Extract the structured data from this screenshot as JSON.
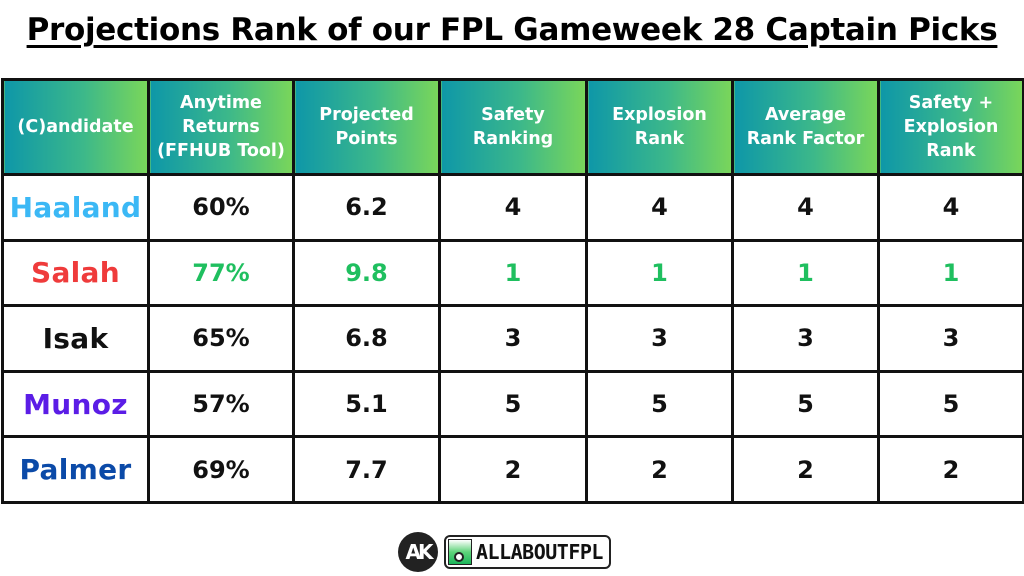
{
  "title": "Projections Rank of our FPL Gameweek 28 Captain Picks",
  "table": {
    "headers": [
      [
        "(C)andidate"
      ],
      [
        "Anytime",
        "Returns",
        "(FFHUB Tool)"
      ],
      [
        "Projected",
        "Points"
      ],
      [
        "Safety",
        "Ranking"
      ],
      [
        "Explosion",
        "Rank"
      ],
      [
        "Average",
        "Rank Factor"
      ],
      [
        "Safety +",
        "Explosion",
        "Rank"
      ]
    ],
    "rows": [
      {
        "name": "Haaland",
        "name_color": "#3bb8f5",
        "value_color": "#111111",
        "values": [
          "60%",
          "6.2",
          "4",
          "4",
          "4",
          "4"
        ]
      },
      {
        "name": "Salah",
        "name_color": "#ef3b3b",
        "value_color": "#1fbf5f",
        "values": [
          "77%",
          "9.8",
          "1",
          "1",
          "1",
          "1"
        ]
      },
      {
        "name": "Isak",
        "name_color": "#111111",
        "value_color": "#111111",
        "values": [
          "65%",
          "6.8",
          "3",
          "3",
          "3",
          "3"
        ]
      },
      {
        "name": "Munoz",
        "name_color": "#5b1de6",
        "value_color": "#111111",
        "values": [
          "57%",
          "5.1",
          "5",
          "5",
          "5",
          "5"
        ]
      },
      {
        "name": "Palmer",
        "name_color": "#0b4aa8",
        "value_color": "#111111",
        "values": [
          "69%",
          "7.7",
          "2",
          "2",
          "2",
          "2"
        ]
      }
    ]
  },
  "footer": {
    "logo_mark": "AK",
    "brand": "ALLABOUTFPL"
  },
  "colors": {
    "header_gradient_start": "#0e97a8",
    "header_gradient_end": "#7ad65a",
    "highlight_green": "#1fbf5f"
  }
}
